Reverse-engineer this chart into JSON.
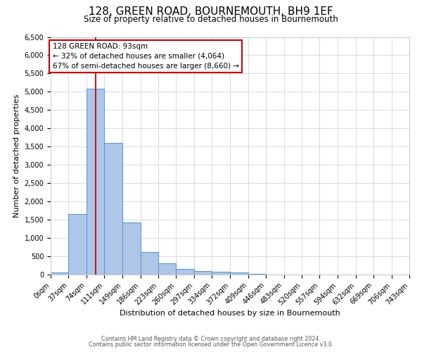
{
  "title": "128, GREEN ROAD, BOURNEMOUTH, BH9 1EF",
  "subtitle": "Size of property relative to detached houses in Bournemouth",
  "xlabel": "Distribution of detached houses by size in Bournemouth",
  "ylabel": "Number of detached properties",
  "bin_edges": [
    0,
    37,
    74,
    111,
    149,
    186,
    223,
    260,
    297,
    334,
    372,
    409,
    446,
    483,
    520,
    557,
    594,
    632,
    669,
    706,
    743
  ],
  "bar_heights": [
    50,
    1650,
    5075,
    3600,
    1425,
    625,
    300,
    150,
    100,
    75,
    50,
    25,
    0,
    0,
    0,
    0,
    0,
    0,
    0,
    0
  ],
  "bar_color": "#aec6e8",
  "bar_edge_color": "#5b9bd5",
  "vline_x": 93,
  "vline_color": "#b22222",
  "ylim": [
    0,
    6500
  ],
  "yticks": [
    0,
    500,
    1000,
    1500,
    2000,
    2500,
    3000,
    3500,
    4000,
    4500,
    5000,
    5500,
    6000,
    6500
  ],
  "annotation_title": "128 GREEN ROAD: 93sqm",
  "annotation_line1": "← 32% of detached houses are smaller (4,064)",
  "annotation_line2": "67% of semi-detached houses are larger (8,660) →",
  "annotation_box_color": "#ffffff",
  "annotation_box_edge_color": "#cc0000",
  "footnote1": "Contains HM Land Registry data © Crown copyright and database right 2024.",
  "footnote2": "Contains public sector information licensed under the Open Government Licence v3.0.",
  "bg_color": "#ffffff",
  "grid_color": "#cccccc",
  "title_fontsize": 11,
  "subtitle_fontsize": 8.5,
  "ylabel_fontsize": 8,
  "xlabel_fontsize": 8,
  "tick_fontsize": 7,
  "annotation_fontsize": 7.5,
  "footnote_fontsize": 5.8
}
